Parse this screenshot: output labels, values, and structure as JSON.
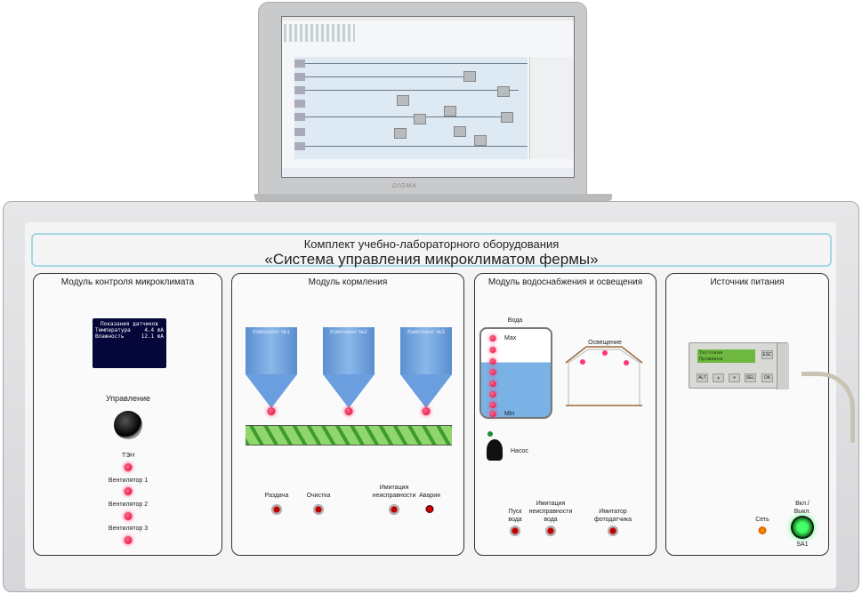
{
  "laptop": {
    "brand": "DIGMA",
    "screen": "function-block-diagram-editor"
  },
  "panel": {
    "title_line1": "Комплект учебно-лабораторного оборудования",
    "title_line2": "«Система управления микроклиматом фермы»"
  },
  "modules": {
    "climate": {
      "title": "Модуль контроля микроклимата",
      "display": {
        "header": "Показания датчиков",
        "rows": [
          {
            "label": "Температура",
            "value": "4.4 mA"
          },
          {
            "label": "Влажность",
            "value": "12.1 mA"
          }
        ]
      },
      "control_label": "Управление",
      "indicators": [
        "ТЭН",
        "Вентилятор 1",
        "Вентилятор 2",
        "Вентилятор 3"
      ]
    },
    "feeding": {
      "title": "Модуль кормления",
      "hoppers": [
        "Компонент №1",
        "Компонент №2",
        "Компонент №3"
      ],
      "buttons": [
        "Раздача",
        "Очистка",
        "Имитация неисправности"
      ],
      "alarm_label": "Авария"
    },
    "water": {
      "title": "Модуль водоснабжения и освещения",
      "tank_label": "Вода",
      "max_label": "Max",
      "min_label": "Min",
      "pump_label": "Насос",
      "lighting_label": "Освещение",
      "buttons": [
        "Пуск вода",
        "Имитация неисправности вода",
        "Имитатор фотодатчика"
      ]
    },
    "power": {
      "title": "Источник питания",
      "lcd_line1": "Тестовая",
      "lcd_line2": "Прошивка",
      "keys": [
        "ALT",
        "⩓",
        "⩔",
        "SEL",
        "OK"
      ],
      "esc": "ESC",
      "net_label": "Сеть",
      "switch_label": "Вкл./ Выкл.",
      "switch_id": "SA1"
    }
  },
  "colors": {
    "led": "#e0003a",
    "water": "#7ab2e6",
    "hopper": "#6b9ede",
    "auger": "#3f9a2f",
    "power_on": "#33dd55"
  }
}
